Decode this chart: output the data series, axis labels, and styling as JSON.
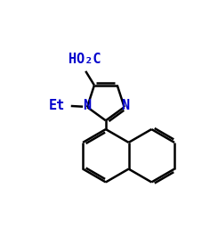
{
  "bg_color": "#ffffff",
  "line_color": "#000000",
  "line_width": 1.8,
  "font_size": 10,
  "figsize": [
    2.45,
    2.57
  ],
  "dpi": 100,
  "xlim": [
    0,
    10
  ],
  "ylim": [
    0,
    10.5
  ]
}
